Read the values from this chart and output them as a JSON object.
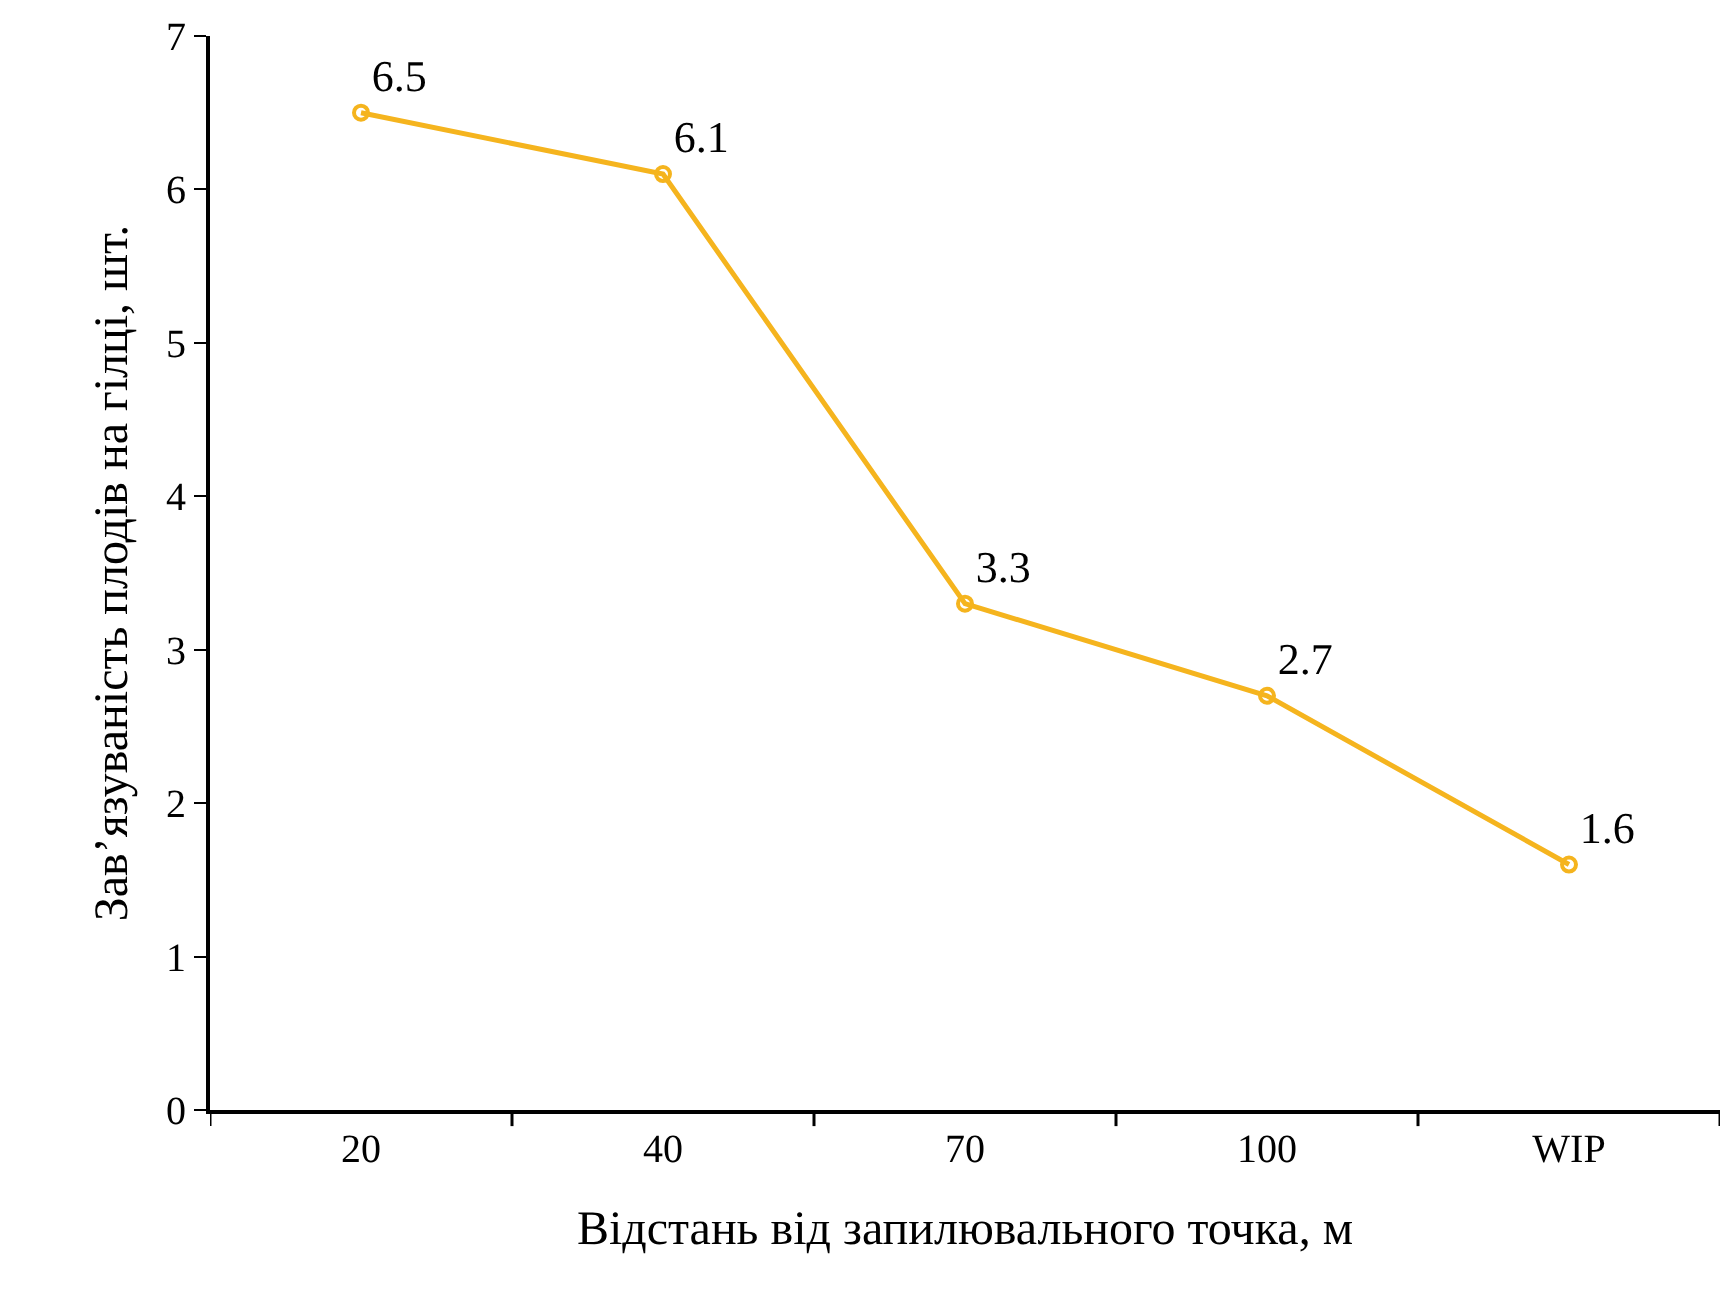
{
  "chart_data": {
    "type": "line",
    "xlabel": "Відстань від запилювального точка, м",
    "ylabel": "Зав’язуваність плодів на гілці, шт.",
    "categories": [
      "20",
      "40",
      "70",
      "100",
      "WIP"
    ],
    "series": [
      {
        "color": "#f5b41e",
        "values": [
          6.5,
          6.1,
          3.3,
          2.7,
          1.6
        ]
      }
    ],
    "ylim": [
      0,
      7
    ],
    "yticks": [
      0,
      1,
      2,
      3,
      4,
      5,
      6,
      7
    ],
    "legend": false,
    "marker": "circle",
    "line_style": "solid",
    "data_labels": true
  }
}
